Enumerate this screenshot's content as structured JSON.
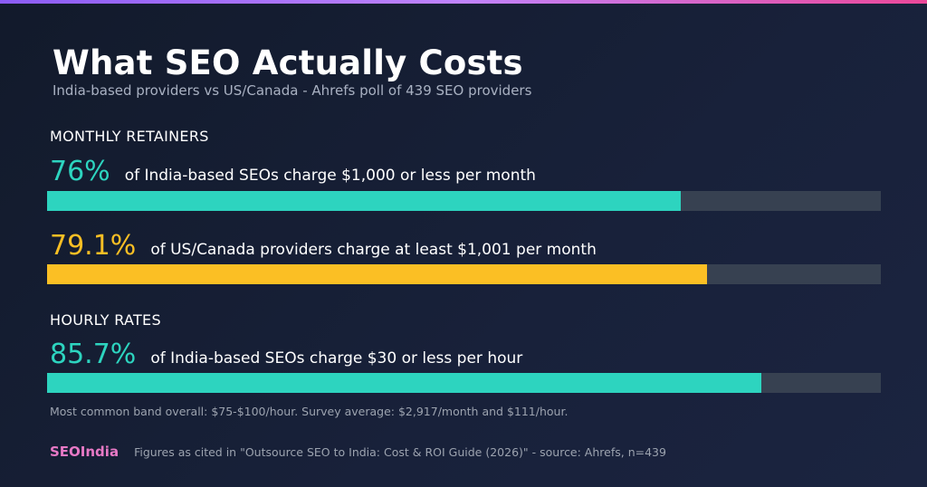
{
  "colors": {
    "teal": "#2dd4bf",
    "amber": "#fbbf24",
    "track": "#374151",
    "brand": "#e879c6"
  },
  "chart_data": {
    "type": "bar",
    "title": "What SEO Actually Costs",
    "subtitle": "India-based providers vs US/Canada - Ahrefs poll of 439 SEO providers",
    "sections": [
      "MONTHLY RETAINERS",
      "HOURLY RATES"
    ],
    "xlim": [
      0,
      100
    ],
    "series": [
      {
        "section": "MONTHLY RETAINERS",
        "value": 76,
        "value_label": "76%",
        "description": "of India-based SEOs charge $1,000 or less per month",
        "color": "#2dd4bf"
      },
      {
        "section": "MONTHLY RETAINERS",
        "value": 79.1,
        "value_label": "79.1%",
        "description": "of US/Canada providers charge at least $1,001 per month",
        "color": "#fbbf24"
      },
      {
        "section": "HOURLY RATES",
        "value": 85.7,
        "value_label": "85.7%",
        "description": "of India-based SEOs charge $30 or less per hour",
        "color": "#2dd4bf"
      }
    ],
    "note": "Most common band overall: $75-$100/hour. Survey average: $2,917/month and $111/hour."
  },
  "footer": {
    "brand": "SEOIndia",
    "source": "Figures as cited in \"Outsource SEO to India: Cost & ROI Guide (2026)\" - source: Ahrefs, n=439"
  }
}
